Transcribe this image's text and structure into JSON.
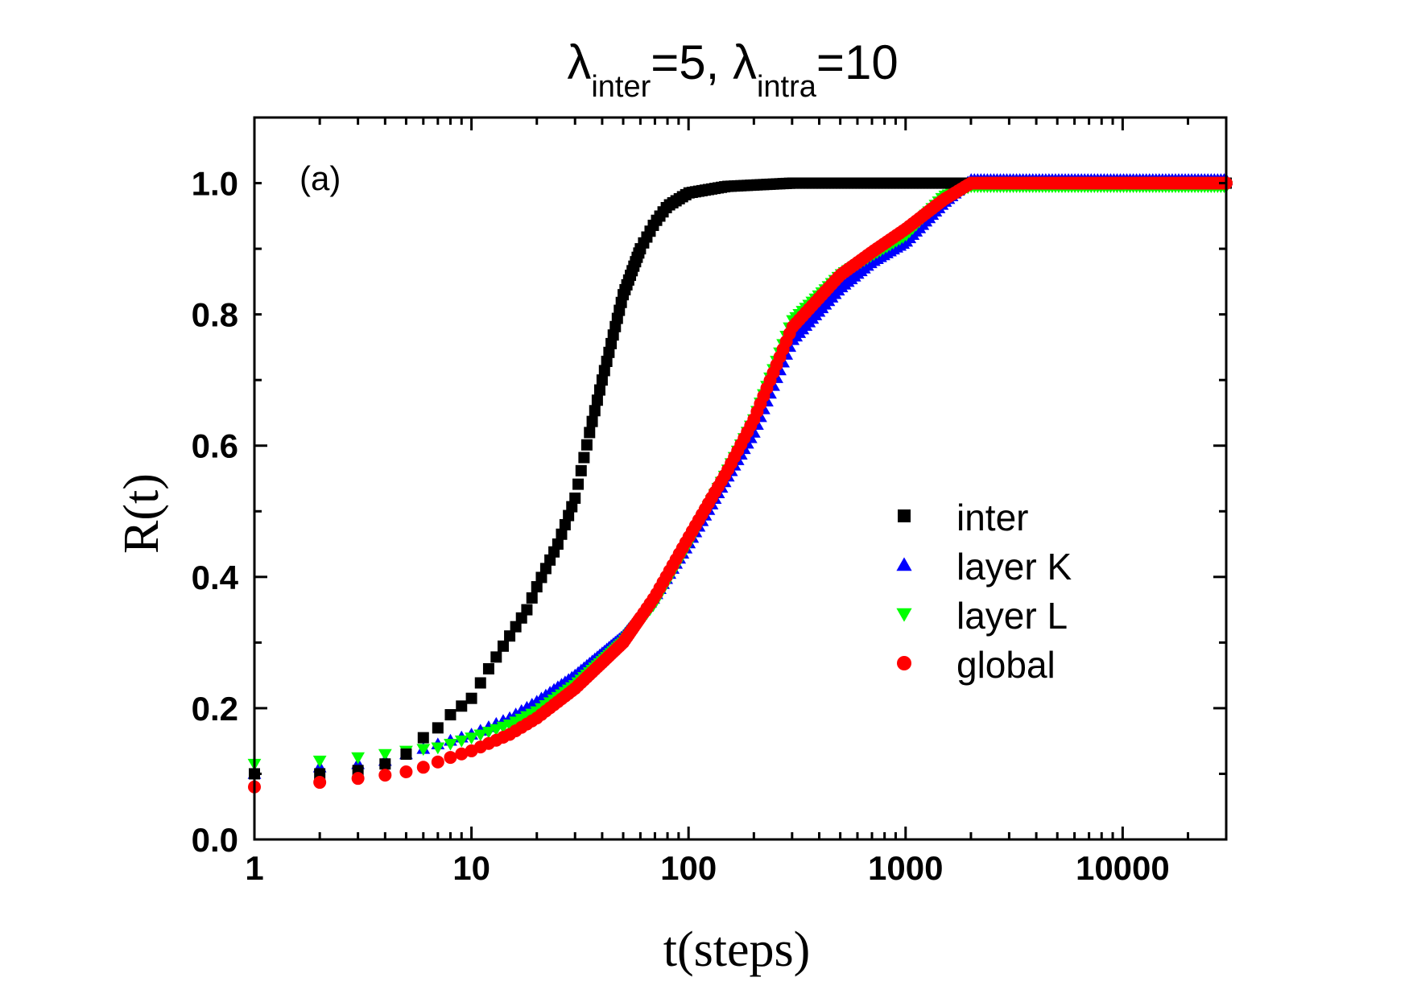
{
  "chart_data": {
    "type": "scatter",
    "title": {
      "greek": "λ",
      "sub1": "inter",
      "val1": "=5, ",
      "sub2": "intra",
      "val2": "=10"
    },
    "panel_label": "(a)",
    "xlabel": "t(steps)",
    "ylabel": "R(t)",
    "xscale": "log",
    "xlim": [
      1,
      30000
    ],
    "ylim": [
      0,
      1.1
    ],
    "x_ticks": [
      {
        "value": 1,
        "label": "1"
      },
      {
        "value": 10,
        "label": "10"
      },
      {
        "value": 100,
        "label": "100"
      },
      {
        "value": 1000,
        "label": "1000"
      },
      {
        "value": 10000,
        "label": "10000"
      }
    ],
    "y_ticks": [
      {
        "value": 0.0,
        "label": "0.0"
      },
      {
        "value": 0.2,
        "label": "0.2"
      },
      {
        "value": 0.4,
        "label": "0.4"
      },
      {
        "value": 0.6,
        "label": "0.6"
      },
      {
        "value": 0.8,
        "label": "0.8"
      },
      {
        "value": 1.0,
        "label": "1.0"
      }
    ],
    "legend_position": "center-right",
    "series": [
      {
        "name": "inter",
        "marker": "square",
        "color": "#000000",
        "points": [
          [
            1,
            0.1
          ],
          [
            2,
            0.1
          ],
          [
            3,
            0.105
          ],
          [
            4,
            0.115
          ],
          [
            5,
            0.13
          ],
          [
            6,
            0.155
          ],
          [
            7,
            0.17
          ],
          [
            8,
            0.19
          ],
          [
            10,
            0.215
          ],
          [
            12,
            0.26
          ],
          [
            15,
            0.31
          ],
          [
            18,
            0.35
          ],
          [
            20,
            0.385
          ],
          [
            25,
            0.45
          ],
          [
            30,
            0.52
          ],
          [
            35,
            0.62
          ],
          [
            40,
            0.7
          ],
          [
            50,
            0.83
          ],
          [
            60,
            0.9
          ],
          [
            70,
            0.94
          ],
          [
            80,
            0.965
          ],
          [
            100,
            0.985
          ],
          [
            150,
            0.995
          ],
          [
            300,
            1.0
          ],
          [
            1000,
            1.0
          ],
          [
            3000,
            1.0
          ],
          [
            10000,
            1.0
          ],
          [
            30000,
            1.0
          ]
        ]
      },
      {
        "name": "layer K",
        "marker": "triangle-up",
        "color": "#0000ff",
        "points": [
          [
            1,
            0.1
          ],
          [
            2,
            0.11
          ],
          [
            3,
            0.115
          ],
          [
            4,
            0.12
          ],
          [
            5,
            0.13
          ],
          [
            7,
            0.145
          ],
          [
            10,
            0.16
          ],
          [
            15,
            0.185
          ],
          [
            20,
            0.21
          ],
          [
            30,
            0.25
          ],
          [
            50,
            0.31
          ],
          [
            70,
            0.37
          ],
          [
            100,
            0.45
          ],
          [
            150,
            0.55
          ],
          [
            200,
            0.62
          ],
          [
            300,
            0.76
          ],
          [
            500,
            0.84
          ],
          [
            700,
            0.88
          ],
          [
            1000,
            0.91
          ],
          [
            1500,
            0.97
          ],
          [
            2000,
            1.005
          ],
          [
            5000,
            1.005
          ],
          [
            10000,
            1.005
          ],
          [
            30000,
            1.005
          ]
        ]
      },
      {
        "name": "layer L",
        "marker": "triangle-down",
        "color": "#00ff00",
        "points": [
          [
            1,
            0.115
          ],
          [
            2,
            0.12
          ],
          [
            3,
            0.125
          ],
          [
            4,
            0.13
          ],
          [
            5,
            0.135
          ],
          [
            7,
            0.14
          ],
          [
            10,
            0.155
          ],
          [
            15,
            0.175
          ],
          [
            20,
            0.195
          ],
          [
            30,
            0.235
          ],
          [
            50,
            0.3
          ],
          [
            70,
            0.36
          ],
          [
            100,
            0.45
          ],
          [
            150,
            0.56
          ],
          [
            200,
            0.64
          ],
          [
            300,
            0.79
          ],
          [
            500,
            0.86
          ],
          [
            700,
            0.89
          ],
          [
            1000,
            0.92
          ],
          [
            1500,
            0.98
          ],
          [
            2000,
            0.995
          ],
          [
            5000,
            0.995
          ],
          [
            10000,
            0.995
          ],
          [
            30000,
            0.995
          ]
        ]
      },
      {
        "name": "global",
        "marker": "circle",
        "color": "#ff0000",
        "points": [
          [
            1,
            0.08
          ],
          [
            2,
            0.087
          ],
          [
            3,
            0.093
          ],
          [
            4,
            0.098
          ],
          [
            5,
            0.103
          ],
          [
            6,
            0.11
          ],
          [
            7,
            0.118
          ],
          [
            8,
            0.125
          ],
          [
            10,
            0.135
          ],
          [
            15,
            0.16
          ],
          [
            20,
            0.185
          ],
          [
            30,
            0.23
          ],
          [
            50,
            0.3
          ],
          [
            70,
            0.37
          ],
          [
            100,
            0.46
          ],
          [
            150,
            0.56
          ],
          [
            200,
            0.64
          ],
          [
            300,
            0.78
          ],
          [
            500,
            0.86
          ],
          [
            700,
            0.895
          ],
          [
            1000,
            0.93
          ],
          [
            1500,
            0.975
          ],
          [
            2000,
            1.0
          ],
          [
            5000,
            1.0
          ],
          [
            10000,
            1.0
          ],
          [
            30000,
            1.0
          ]
        ]
      }
    ]
  }
}
